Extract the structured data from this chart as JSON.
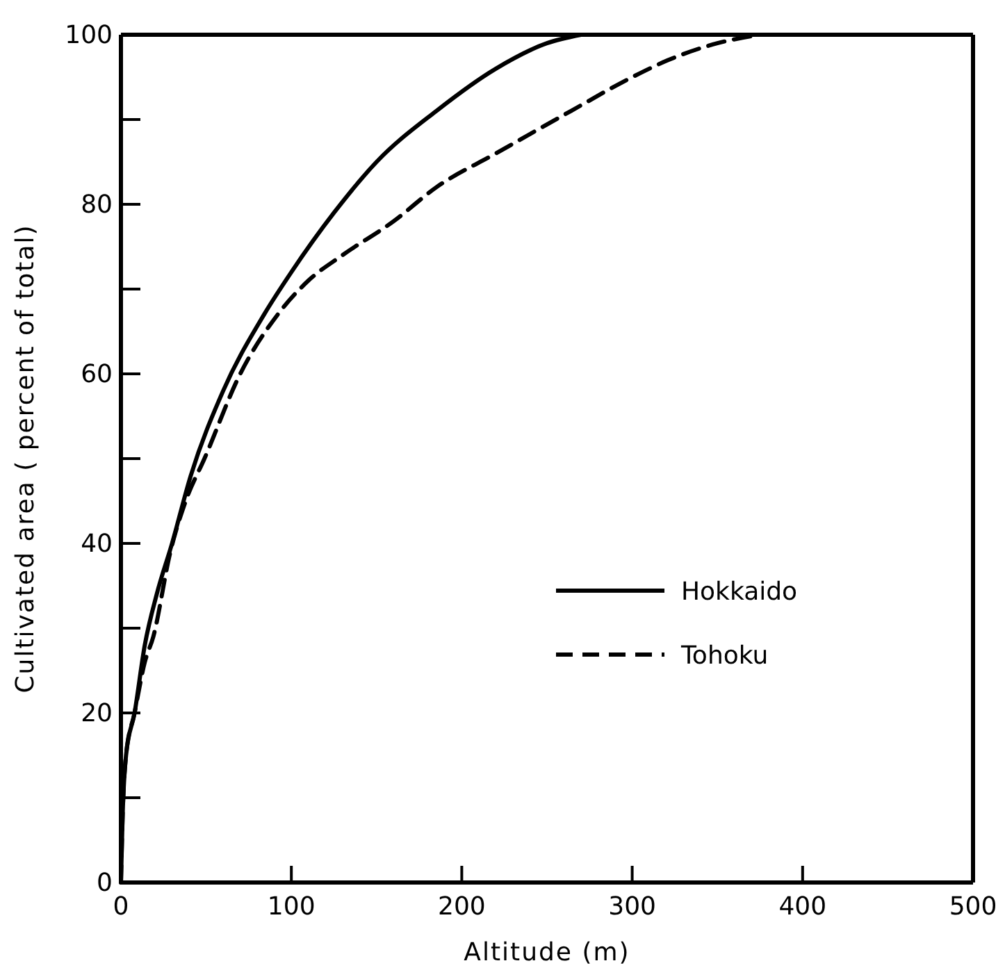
{
  "chart_data": {
    "type": "line",
    "xlabel": "Altitude  (m)",
    "ylabel": "Cultivated area ( percent of total)",
    "xlim": [
      0,
      500
    ],
    "ylim": [
      0,
      100
    ],
    "xticks": [
      0,
      100,
      200,
      300,
      400,
      500
    ],
    "yticks": [
      0,
      {
        "value": 10,
        "label": null
      },
      20,
      {
        "value": 30,
        "label": null
      },
      40,
      {
        "value": 50,
        "label": null
      },
      60,
      {
        "value": 70,
        "label": null
      },
      80,
      {
        "value": 90,
        "label": null
      },
      100
    ],
    "grid": false,
    "legend": "bottom right",
    "marker": "none",
    "series": [
      {
        "name": "Hokkaido",
        "color": "#000000",
        "line_style": "solid",
        "x": [
          0,
          1,
          3,
          8,
          14,
          21,
          30,
          41,
          60,
          84,
          100,
          125,
          150,
          185,
          220,
          250,
          270
        ],
        "values": [
          0,
          8,
          15,
          20,
          28,
          34,
          40,
          48,
          58,
          67,
          72,
          79,
          85,
          91,
          96,
          99,
          100
        ]
      },
      {
        "name": "Tohoku",
        "color": "#000000",
        "line_style": "dashed",
        "x": [
          0,
          1,
          3,
          8,
          14,
          19,
          29,
          38,
          49,
          70,
          92,
          110,
          130,
          160,
          185,
          220,
          264,
          300,
          321,
          350,
          375
        ],
        "values": [
          0,
          8,
          15,
          20,
          26,
          29,
          39,
          45,
          50,
          60,
          67,
          71,
          74,
          78,
          82,
          86,
          91,
          95,
          97,
          99,
          100
        ]
      }
    ]
  }
}
